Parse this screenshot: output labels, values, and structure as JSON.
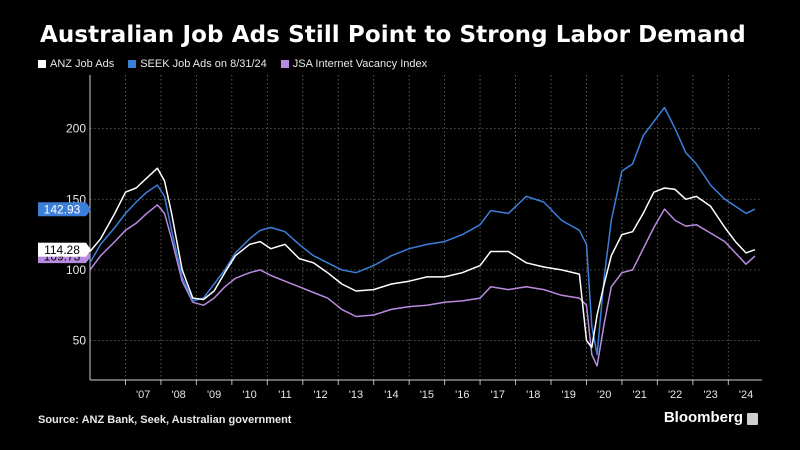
{
  "title": "Australian Job Ads Still Point to Strong Labor Demand",
  "source": "Source: ANZ Bank, Seek, Australian government",
  "brand": "Bloomberg",
  "colors": {
    "anz": "#ffffff",
    "seek": "#3c7fd9",
    "jsa": "#b98be0",
    "background": "#000000",
    "grid": "#6e6e6e"
  },
  "chart_data": {
    "type": "line",
    "title": "Australian Job Ads Still Point to Strong Labor Demand",
    "xlabel": "",
    "ylabel": "",
    "ylim": [
      22,
      238
    ],
    "xlim": [
      2006.0,
      2024.95
    ],
    "y_ticks": [
      50,
      100,
      150,
      200
    ],
    "x_ticks": [
      "'07",
      "'08",
      "'09",
      "'10",
      "'11",
      "'12",
      "'13",
      "'14",
      "'15",
      "'16",
      "'17",
      "'18",
      "'19",
      "'20",
      "'21",
      "'22",
      "'23",
      "'24"
    ],
    "grid": true,
    "legend_position": "top-left",
    "last_value_labels": [
      "142.93",
      "114.28",
      "109.73"
    ],
    "series": [
      {
        "name": "ANZ Job Ads",
        "color": "#ffffff",
        "x": [
          2006.0,
          2006.3,
          2006.7,
          2007.0,
          2007.3,
          2007.6,
          2007.9,
          2008.1,
          2008.3,
          2008.6,
          2008.9,
          2009.2,
          2009.5,
          2009.8,
          2010.1,
          2010.5,
          2010.8,
          2011.1,
          2011.5,
          2011.9,
          2012.3,
          2012.7,
          2013.1,
          2013.5,
          2014.0,
          2014.5,
          2015.0,
          2015.5,
          2016.0,
          2016.5,
          2017.0,
          2017.3,
          2017.8,
          2018.3,
          2018.8,
          2019.3,
          2019.8,
          2020.0,
          2020.15,
          2020.3,
          2020.5,
          2020.7,
          2021.0,
          2021.3,
          2021.6,
          2021.9,
          2022.2,
          2022.5,
          2022.8,
          2023.1,
          2023.5,
          2023.9,
          2024.2,
          2024.5,
          2024.75
        ],
        "values": [
          113,
          122,
          140,
          155,
          158,
          165,
          172,
          163,
          140,
          100,
          80,
          79,
          85,
          98,
          110,
          118,
          120,
          115,
          118,
          108,
          105,
          98,
          90,
          85,
          86,
          90,
          92,
          95,
          95,
          98,
          103,
          113,
          113,
          105,
          102,
          100,
          97,
          50,
          45,
          68,
          90,
          110,
          125,
          127,
          140,
          155,
          158,
          157,
          150,
          152,
          145,
          130,
          120,
          112,
          114.28
        ]
      },
      {
        "name": "SEEK Job Ads on 8/31/24",
        "color": "#3c7fd9",
        "x": [
          2006.0,
          2006.3,
          2006.7,
          2007.0,
          2007.3,
          2007.6,
          2007.9,
          2008.1,
          2008.3,
          2008.6,
          2008.9,
          2009.2,
          2009.5,
          2009.8,
          2010.1,
          2010.5,
          2010.8,
          2011.1,
          2011.5,
          2011.9,
          2012.3,
          2012.7,
          2013.1,
          2013.5,
          2014.0,
          2014.5,
          2015.0,
          2015.5,
          2016.0,
          2016.5,
          2017.0,
          2017.3,
          2017.8,
          2018.3,
          2018.8,
          2019.3,
          2019.8,
          2020.0,
          2020.15,
          2020.3,
          2020.5,
          2020.7,
          2021.0,
          2021.3,
          2021.6,
          2021.9,
          2022.2,
          2022.5,
          2022.8,
          2023.1,
          2023.5,
          2023.9,
          2024.2,
          2024.5,
          2024.75
        ],
        "values": [
          105,
          118,
          130,
          140,
          148,
          155,
          160,
          152,
          128,
          95,
          78,
          80,
          90,
          100,
          112,
          122,
          128,
          130,
          127,
          118,
          110,
          105,
          100,
          98,
          103,
          110,
          115,
          118,
          120,
          125,
          132,
          142,
          140,
          152,
          148,
          135,
          128,
          118,
          60,
          40,
          95,
          135,
          170,
          175,
          195,
          205,
          215,
          200,
          183,
          175,
          160,
          150,
          145,
          140,
          142.93
        ]
      },
      {
        "name": "JSA Internet Vacancy Index",
        "color": "#b98be0",
        "x": [
          2006.0,
          2006.3,
          2006.7,
          2007.0,
          2007.3,
          2007.6,
          2007.9,
          2008.1,
          2008.3,
          2008.6,
          2008.9,
          2009.2,
          2009.5,
          2009.8,
          2010.1,
          2010.5,
          2010.8,
          2011.1,
          2011.5,
          2011.9,
          2012.3,
          2012.7,
          2013.1,
          2013.5,
          2014.0,
          2014.5,
          2015.0,
          2015.5,
          2016.0,
          2016.5,
          2017.0,
          2017.3,
          2017.8,
          2018.3,
          2018.8,
          2019.3,
          2019.8,
          2020.0,
          2020.15,
          2020.3,
          2020.5,
          2020.7,
          2021.0,
          2021.3,
          2021.6,
          2021.9,
          2022.2,
          2022.5,
          2022.8,
          2023.1,
          2023.5,
          2023.9,
          2024.2,
          2024.5,
          2024.75
        ],
        "values": [
          100,
          110,
          120,
          128,
          133,
          140,
          146,
          140,
          122,
          92,
          77,
          75,
          80,
          88,
          94,
          98,
          100,
          96,
          92,
          88,
          84,
          80,
          72,
          67,
          68,
          72,
          74,
          75,
          77,
          78,
          80,
          88,
          86,
          88,
          86,
          82,
          80,
          75,
          40,
          32,
          62,
          88,
          98,
          100,
          115,
          130,
          143,
          135,
          131,
          132,
          126,
          120,
          112,
          104,
          109.73
        ]
      }
    ]
  },
  "legend": [
    {
      "label": "ANZ Job Ads",
      "color": "#ffffff"
    },
    {
      "label": "SEEK Job Ads on 8/31/24",
      "color": "#3c7fd9"
    },
    {
      "label": "JSA Internet Vacancy Index",
      "color": "#b98be0"
    }
  ]
}
